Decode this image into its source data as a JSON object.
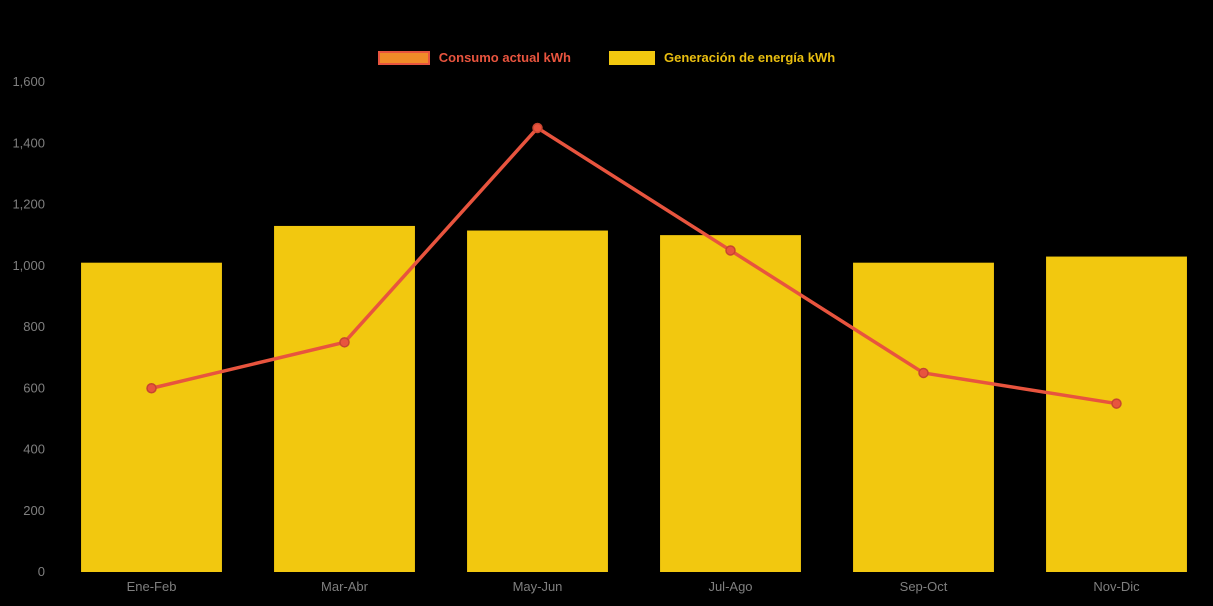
{
  "chart_data": {
    "type": "combo",
    "categories": [
      "Ene-Feb",
      "Mar-Abr",
      "May-Jun",
      "Jul-Ago",
      "Sep-Oct",
      "Nov-Dic"
    ],
    "series": [
      {
        "name": "Consumo actual kWh",
        "type": "line",
        "color": "#E8543E",
        "marker_stroke": "#C74530",
        "values": [
          600,
          750,
          1450,
          1050,
          650,
          550
        ]
      },
      {
        "name": "Generación de energía kWh",
        "type": "bar",
        "color": "#F2C80F",
        "values": [
          1010,
          1130,
          1115,
          1100,
          1010,
          1030
        ]
      }
    ],
    "ylim": [
      0,
      1600
    ],
    "ytick_step": 200,
    "ytick_labels": [
      "0",
      "200",
      "400",
      "600",
      "800",
      "1,000",
      "1,200",
      "1,400",
      "1,600"
    ],
    "legend_position": "top-center",
    "grid": false,
    "background": "#000000",
    "axis_label_color": "#7f7f7f",
    "line_swatch_fill": "#F08B28"
  }
}
